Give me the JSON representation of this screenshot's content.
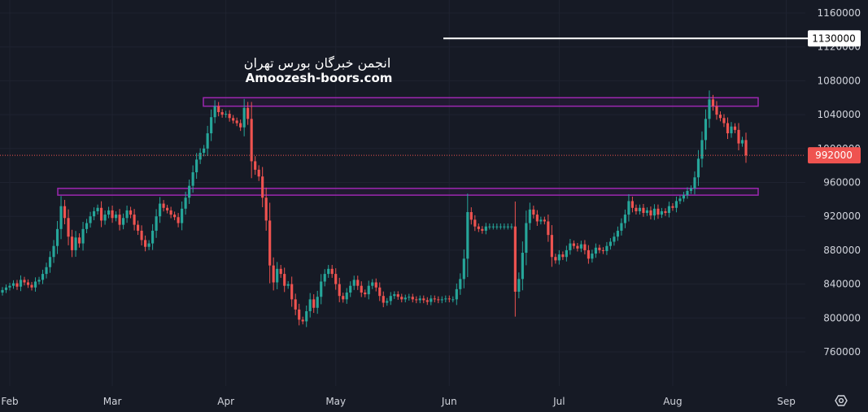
{
  "watermark": {
    "line1": "انجمن خبرگان بورس تهران",
    "line2": "Amoozesh-boors.com"
  },
  "chart_data": {
    "type": "candlestick",
    "title": "",
    "xlabel": "",
    "ylabel": "",
    "ylim": [
      720000,
      1170000
    ],
    "grid": true,
    "y_ticks": [
      "1160000",
      "1120000",
      "1080000",
      "1040000",
      "1000000",
      "960000",
      "920000",
      "880000",
      "840000",
      "800000",
      "760000"
    ],
    "x_ticks": [
      {
        "label": "Feb",
        "day": 2
      },
      {
        "label": "Mar",
        "day": 30
      },
      {
        "label": "Apr",
        "day": 61
      },
      {
        "label": "May",
        "day": 91
      },
      {
        "label": "Jun",
        "day": 122
      },
      {
        "label": "Jul",
        "day": 152
      },
      {
        "label": "Aug",
        "day": 183
      },
      {
        "label": "Sep",
        "day": 214
      }
    ],
    "ohlc_closes": [
      833000,
      836000,
      838000,
      841000,
      837000,
      845000,
      842000,
      839000,
      836000,
      843000,
      845000,
      852000,
      860000,
      872000,
      885000,
      905000,
      932000,
      918000,
      896000,
      880000,
      895000,
      888000,
      905000,
      912000,
      920000,
      926000,
      930000,
      915000,
      922000,
      927000,
      918000,
      922000,
      910000,
      918000,
      927000,
      922000,
      910000,
      903000,
      892000,
      884000,
      888000,
      903000,
      920000,
      935000,
      930000,
      927000,
      922000,
      919000,
      912000,
      929000,
      942000,
      956000,
      972000,
      987000,
      995000,
      1000000,
      1018000,
      1037000,
      1050000,
      1043000,
      1040000,
      1041000,
      1036000,
      1033000,
      1030000,
      1025000,
      1048000,
      1035000,
      985000,
      975000,
      967000,
      942000,
      915000,
      862000,
      842000,
      858000,
      852000,
      838000,
      840000,
      822000,
      810000,
      798000,
      796000,
      808000,
      822000,
      812000,
      825000,
      843000,
      852000,
      858000,
      852000,
      840000,
      826000,
      822000,
      830000,
      838000,
      845000,
      838000,
      830000,
      828000,
      838000,
      842000,
      836000,
      826000,
      818000,
      820000,
      826000,
      828000,
      825000,
      822000,
      824000,
      825000,
      822000,
      821000,
      823000,
      821000,
      819000,
      823000,
      822000,
      821000,
      822000,
      823000,
      822000,
      822000,
      834000,
      846000,
      870000,
      925000,
      916000,
      908000,
      905000,
      903000,
      908000,
      908000,
      908000,
      908000,
      908000,
      908000,
      908000,
      908000,
      831000,
      846000,
      877000,
      912000,
      928000,
      922000,
      914000,
      916000,
      914000,
      898000,
      872000,
      868000,
      875000,
      872000,
      880000,
      888000,
      885000,
      882000,
      887000,
      880000,
      870000,
      876000,
      883000,
      880000,
      879000,
      885000,
      890000,
      896000,
      903000,
      912000,
      922000,
      938000,
      930000,
      926000,
      930000,
      924000,
      927000,
      921000,
      929000,
      922000,
      926000,
      924000,
      932000,
      930000,
      938000,
      941000,
      945000,
      950000,
      953000,
      966000,
      988000,
      1010000,
      1035000,
      1058000,
      1050000,
      1040000,
      1036000,
      1030000,
      1018000,
      1026000,
      1022000,
      1006000,
      1010000,
      992000
    ]
  },
  "lines": {
    "resistance": {
      "low": 1050000,
      "high": 1060000
    },
    "support": {
      "low": 945000,
      "high": 953000
    },
    "target_line": 1130000
  },
  "price_tags": [
    {
      "label": "1130000",
      "value": 1130000,
      "style": "light"
    },
    {
      "label": "992000",
      "value": 992000,
      "style": "red"
    }
  ],
  "colors": {
    "up": "#26a69a",
    "down": "#ef5350",
    "zone": "#9c27b0",
    "price_line": "#ef5350",
    "target": "#ffffff"
  },
  "icons": {
    "settings": "hexagon-settings-icon"
  }
}
